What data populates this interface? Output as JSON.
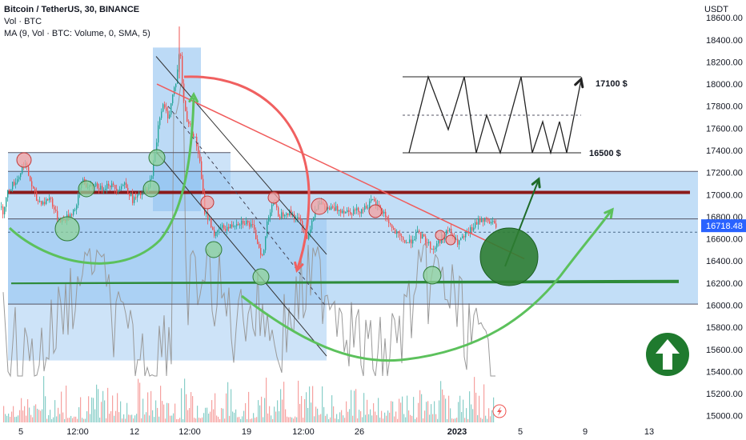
{
  "legend": {
    "title": "Bitcoin / TetherUS, 30, BINANCE",
    "volume": "Vol · BTC",
    "ma": "MA (9, Vol · BTC: Volume, 0, SMA, 5)"
  },
  "currency": "USDT",
  "current_price": "16718.48",
  "annotations": {
    "target_high": "17100 $",
    "target_low": "16500 $"
  },
  "colors": {
    "up": "#26a69a",
    "down": "#ef5350",
    "zone_fill": "#90c2f0",
    "resistance": "#8b1a1a",
    "support": "#2e8b3a",
    "trendline": "#f05c5c",
    "price_tag": "#2962ff",
    "arrow_circle": "#1e6b28"
  },
  "chart_data": {
    "type": "candlestick",
    "symbol": "Bitcoin / TetherUS",
    "interval": "30",
    "exchange": "BINANCE",
    "ylim": [
      14940,
      18760
    ],
    "y_ticks": [
      15000,
      15200,
      15400,
      15600,
      15800,
      16000,
      16200,
      16400,
      16600,
      16800,
      17000,
      17200,
      17400,
      17600,
      17800,
      18000,
      18200,
      18400,
      18600
    ],
    "y_tick_labels": [
      "15000.00",
      "15200.00",
      "15400.00",
      "15600.00",
      "15800.00",
      "16000.00",
      "16200.00",
      "16400.00",
      "16600.00",
      "16800.00",
      "17000.00",
      "17200.00",
      "17400.00",
      "17600.00",
      "17800.00",
      "18000.00",
      "18200.00",
      "18400.00",
      "18600.00"
    ],
    "x_tick_labels": [
      "5",
      "12:00",
      "12",
      "12:00",
      "19",
      "12:00",
      "26",
      "2023",
      "5",
      "9",
      "13"
    ],
    "last_price": 16718.48,
    "price_path": [
      [
        0,
        16890
      ],
      [
        3,
        16850
      ],
      [
        10,
        17050
      ],
      [
        22,
        17150
      ],
      [
        30,
        17300
      ],
      [
        38,
        17100
      ],
      [
        45,
        16950
      ],
      [
        55,
        16930
      ],
      [
        62,
        16980
      ],
      [
        70,
        16800
      ],
      [
        78,
        16760
      ],
      [
        88,
        16830
      ],
      [
        95,
        16900
      ],
      [
        102,
        17150
      ],
      [
        110,
        17050
      ],
      [
        118,
        17100
      ],
      [
        125,
        17050
      ],
      [
        135,
        17100
      ],
      [
        145,
        17050
      ],
      [
        155,
        17100
      ],
      [
        165,
        16950
      ],
      [
        175,
        17000
      ],
      [
        185,
        17050
      ],
      [
        193,
        17350
      ],
      [
        198,
        17700
      ],
      [
        203,
        17800
      ],
      [
        210,
        17700
      ],
      [
        215,
        17900
      ],
      [
        220,
        18050
      ],
      [
        224,
        18350
      ],
      [
        228,
        17900
      ],
      [
        232,
        17700
      ],
      [
        238,
        17600
      ],
      [
        243,
        17500
      ],
      [
        248,
        17350
      ],
      [
        255,
        16850
      ],
      [
        262,
        16750
      ],
      [
        268,
        16620
      ],
      [
        275,
        16700
      ],
      [
        285,
        16700
      ],
      [
        295,
        16750
      ],
      [
        305,
        16760
      ],
      [
        315,
        16700
      ],
      [
        322,
        16550
      ],
      [
        328,
        16420
      ],
      [
        333,
        16750
      ],
      [
        340,
        16950
      ],
      [
        348,
        16800
      ],
      [
        356,
        16850
      ],
      [
        365,
        16820
      ],
      [
        375,
        16750
      ],
      [
        383,
        16600
      ],
      [
        390,
        16800
      ],
      [
        398,
        16950
      ],
      [
        405,
        16870
      ],
      [
        420,
        16870
      ],
      [
        435,
        16850
      ],
      [
        450,
        16860
      ],
      [
        465,
        16940
      ],
      [
        480,
        16820
      ],
      [
        490,
        16680
      ],
      [
        500,
        16600
      ],
      [
        510,
        16560
      ],
      [
        520,
        16650
      ],
      [
        530,
        16600
      ],
      [
        540,
        16500
      ],
      [
        550,
        16600
      ],
      [
        560,
        16680
      ],
      [
        570,
        16560
      ],
      [
        580,
        16620
      ],
      [
        590,
        16700
      ],
      [
        600,
        16780
      ],
      [
        610,
        16760
      ],
      [
        620,
        16720
      ]
    ]
  }
}
